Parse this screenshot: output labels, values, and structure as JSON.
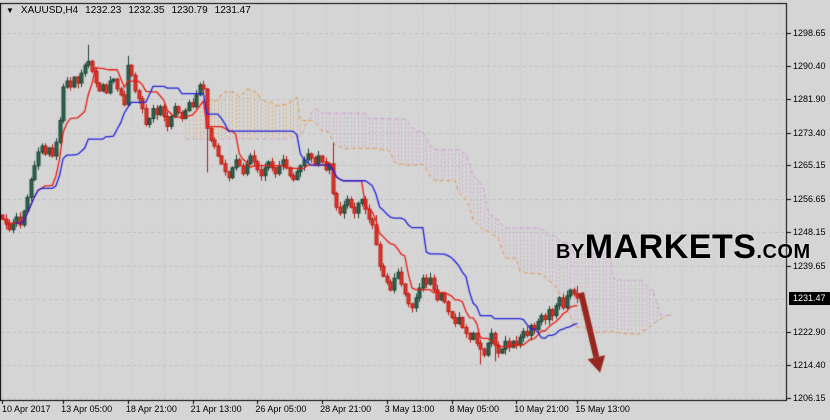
{
  "window": {
    "symbol_info": {
      "dropdown_glyph": "▼",
      "symbol": "XAUUSD,H4",
      "open": "1232.23",
      "high": "1232.35",
      "low": "1230.79",
      "close": "1231.47"
    }
  },
  "watermark": {
    "by": "BY",
    "markets": "MARKETS",
    "com": ".COM",
    "markets_color": "#2e7de2",
    "dark_color": "#232323"
  },
  "chart_data": {
    "type": "candlestick",
    "title": "XAUUSD H4 candlestick chart with Ichimoku Kinko Hyo cloud",
    "symbol": "XAUUSD",
    "timeframe": "H4",
    "current_price_label": "1231.47",
    "current_price": 1231.47,
    "price_axis": {
      "labels": [
        "1298.65",
        "1290.40",
        "1281.90",
        "1273.40",
        "1265.15",
        "1256.65",
        "1248.15",
        "1239.65",
        "1222.90",
        "1214.40",
        "1206.15"
      ],
      "grid_prices": [
        1298.65,
        1290.4,
        1281.9,
        1273.4,
        1265.15,
        1256.65,
        1248.15,
        1239.65,
        1231.15,
        1222.9,
        1214.4,
        1206.15
      ],
      "range_top": 1306.3,
      "range_bottom": 1205.6
    },
    "time_axis": {
      "ticks": [
        {
          "label": "10 Apr 2017",
          "bar": 0
        },
        {
          "label": "13 Apr 05:00",
          "bar": 17
        },
        {
          "label": "18 Apr 21:00",
          "bar": 35
        },
        {
          "label": "21 Apr 13:00",
          "bar": 53
        },
        {
          "label": "26 Apr 05:00",
          "bar": 71
        },
        {
          "label": "28 Apr 21:00",
          "bar": 89
        },
        {
          "label": "3 May 13:00",
          "bar": 107
        },
        {
          "label": "8 May 05:00",
          "bar": 125
        },
        {
          "label": "10 May 21:00",
          "bar": 143
        },
        {
          "label": "15 May 13:00",
          "bar": 160
        }
      ],
      "bars_visible": 218,
      "vgrid_step_bars": 9
    },
    "ichimoku": {
      "tenkan_period": 9,
      "kijun_period": 26,
      "senkou_b_period": 52,
      "shift": 26
    },
    "candles": {
      "first_open": 1252.5,
      "closes": [
        1251.5,
        1250.2,
        1248.8,
        1250.5,
        1252.0,
        1250.0,
        1253.5,
        1257.0,
        1261.5,
        1265.0,
        1268.5,
        1270.0,
        1268.0,
        1269.5,
        1267.5,
        1271.0,
        1276.5,
        1285.0,
        1286.5,
        1285.0,
        1287.5,
        1286.0,
        1288.5,
        1290.5,
        1291.5,
        1289.0,
        1286.0,
        1284.0,
        1285.5,
        1283.5,
        1286.5,
        1287.0,
        1284.5,
        1283.0,
        1280.5,
        1290.5,
        1288.0,
        1284.0,
        1282.0,
        1279.5,
        1275.5,
        1277.0,
        1279.5,
        1278.0,
        1280.0,
        1277.5,
        1275.0,
        1277.5,
        1280.0,
        1278.5,
        1277.0,
        1279.0,
        1281.0,
        1280.0,
        1283.0,
        1285.5,
        1284.5,
        1274.5,
        1271.5,
        1270.0,
        1267.5,
        1265.5,
        1263.5,
        1262.0,
        1264.5,
        1266.5,
        1265.0,
        1263.0,
        1265.5,
        1267.5,
        1266.0,
        1264.0,
        1262.5,
        1264.5,
        1266.0,
        1264.5,
        1263.0,
        1265.0,
        1266.5,
        1264.5,
        1262.5,
        1261.5,
        1263.5,
        1265.0,
        1266.5,
        1268.0,
        1267.0,
        1265.5,
        1267.5,
        1266.0,
        1264.0,
        1265.5,
        1258.0,
        1254.5,
        1253.0,
        1255.0,
        1256.5,
        1254.5,
        1253.0,
        1255.5,
        1256.5,
        1254.0,
        1251.5,
        1250.0,
        1245.0,
        1239.5,
        1237.0,
        1235.5,
        1233.5,
        1236.5,
        1238.0,
        1235.0,
        1232.5,
        1230.0,
        1229.0,
        1231.5,
        1234.0,
        1236.5,
        1235.0,
        1236.5,
        1233.5,
        1231.0,
        1232.5,
        1230.5,
        1228.0,
        1226.5,
        1225.0,
        1226.5,
        1224.0,
        1222.5,
        1221.0,
        1222.5,
        1220.0,
        1218.5,
        1217.0,
        1220.0,
        1222.5,
        1219.5,
        1217.5,
        1218.5,
        1220.5,
        1219.0,
        1220.5,
        1219.5,
        1221.5,
        1223.0,
        1222.0,
        1224.5,
        1223.5,
        1225.5,
        1227.0,
        1226.0,
        1228.5,
        1227.0,
        1229.5,
        1231.5,
        1229.0,
        1232.0,
        1233.5,
        1232.5,
        1231.47
      ],
      "wick_overrides": {
        "24": {
          "high": 1295.7
        },
        "35": {
          "high": 1292.9
        },
        "57": {
          "low": 1263.3
        },
        "92": {
          "high": 1270.8
        },
        "104": {
          "high": 1252.5
        },
        "133": {
          "low": 1214.6
        },
        "137": {
          "low": 1215.4
        },
        "160": {
          "high": 1234.5,
          "low": 1230.2
        }
      }
    },
    "arrow": {
      "from_bar": 161.0,
      "from_price": 1232.8,
      "to_bar": 166.3,
      "to_price": 1212.5
    },
    "colors": {
      "background": "#d5d5d5",
      "grid": "#c3c3c3",
      "border": "#000000",
      "bull_fill": "#2e6350",
      "bull_stroke": "#1d4434",
      "bear_fill": "#e0352b",
      "bear_stroke": "#b71c12",
      "tenkan": "#e81c14",
      "kijun": "#2121dd",
      "senkou_a": "#e59a4e",
      "senkou_b": "#cfa6cf",
      "kumo_up_hatch": "rgba(233,160,78,0.65)",
      "kumo_down_hatch": "rgba(207,163,207,0.75)",
      "arrow": "#96271f",
      "price_tag_bg": "#000000",
      "price_tag_text": "#ffffff",
      "text": "#000000"
    }
  }
}
